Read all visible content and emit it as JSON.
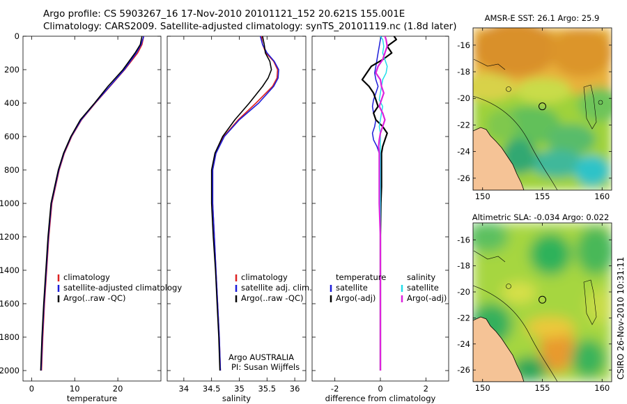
{
  "header": {
    "line1": "Argo profile: CS 5903267_16 17-Nov-2010 20101121_152 20.621S 155.001E",
    "line2": "Climatology: CARS2009. Satellite-adjusted climatology: synTS_20101119.nc (1.8d later)"
  },
  "credit": {
    "stamp": "CSIRO 26-Nov-2010 10:31:11",
    "agency": "Argo AUSTRALIA",
    "pi": "PI: Susan Wijffels"
  },
  "colors": {
    "climatology": "#dd2222",
    "satellite": "#1c1cd8",
    "argo": "#000000",
    "salinity_satellite": "#22dde8",
    "salinity_argo": "#dd22dd",
    "land": "#f5c396"
  },
  "chart_data": [
    {
      "id": "temperature",
      "type": "line",
      "xlabel": "temperature",
      "xlim": [
        -2,
        30
      ],
      "xticks": [
        0,
        10,
        20
      ],
      "ylim": [
        0,
        2000
      ],
      "yticks": [
        0,
        200,
        400,
        600,
        800,
        1000,
        1200,
        1400,
        1600,
        1800,
        2000
      ],
      "legend": [
        "climatology",
        "satellite-adjusted climatology",
        "Argo(..raw -QC)"
      ],
      "depth": [
        0,
        50,
        100,
        200,
        300,
        400,
        500,
        600,
        700,
        800,
        1000,
        1200,
        1400,
        1600,
        1800,
        2000
      ],
      "series": [
        {
          "name": "climatology",
          "values": [
            26.0,
            25.6,
            24.6,
            21.6,
            18.2,
            14.8,
            11.6,
            9.3,
            7.6,
            6.4,
            4.7,
            4.0,
            3.5,
            3.0,
            2.6,
            2.3
          ]
        },
        {
          "name": "satellite-adjusted climatology",
          "values": [
            26.0,
            25.4,
            24.3,
            21.5,
            18.1,
            14.7,
            11.5,
            9.2,
            7.5,
            6.3,
            4.6,
            3.9,
            3.4,
            2.9,
            2.5,
            2.2
          ]
        },
        {
          "name": "Argo(..raw -QC)",
          "values": [
            25.6,
            25.2,
            24.0,
            21.2,
            17.7,
            14.6,
            11.3,
            9.1,
            7.4,
            6.2,
            4.5,
            3.8,
            3.3,
            2.8,
            2.4,
            2.1
          ]
        }
      ]
    },
    {
      "id": "salinity",
      "type": "line",
      "xlabel": "salinity",
      "xlim": [
        33.7,
        36.2
      ],
      "xticks": [
        34,
        34.5,
        35,
        35.5,
        36
      ],
      "ylim": [
        0,
        2000
      ],
      "legend": [
        "climatology",
        "satellite adj. clim.",
        "Argo(..raw -QC)"
      ],
      "depth": [
        0,
        50,
        100,
        150,
        200,
        250,
        300,
        400,
        500,
        600,
        700,
        800,
        1000,
        1200,
        1400,
        1600,
        1800,
        2000
      ],
      "series": [
        {
          "name": "climatology",
          "values": [
            35.4,
            35.42,
            35.48,
            35.62,
            35.69,
            35.68,
            35.6,
            35.3,
            34.98,
            34.72,
            34.58,
            34.52,
            34.52,
            34.55,
            34.58,
            34.61,
            34.64,
            34.66
          ]
        },
        {
          "name": "satellite adj. clim.",
          "values": [
            35.38,
            35.42,
            35.5,
            35.63,
            35.71,
            35.7,
            35.62,
            35.35,
            35.0,
            34.73,
            34.58,
            34.52,
            34.52,
            34.55,
            34.58,
            34.61,
            34.64,
            34.66
          ]
        },
        {
          "name": "Argo(..raw -QC)",
          "values": [
            35.42,
            35.45,
            35.47,
            35.55,
            35.58,
            35.52,
            35.42,
            35.18,
            34.92,
            34.7,
            34.56,
            34.5,
            34.5,
            34.53,
            34.57,
            34.6,
            34.63,
            34.65
          ]
        }
      ]
    },
    {
      "id": "difference",
      "type": "line",
      "xlabel": "difference from climatology",
      "xlim": [
        -3.0,
        3.0
      ],
      "xticks": [
        -2,
        0,
        2
      ],
      "ylim": [
        0,
        2000
      ],
      "legend_titles": [
        "temperature",
        "salinity"
      ],
      "legend": [
        "satellite",
        "Argo(-adj)",
        "satellite",
        "Argo(-adj)"
      ],
      "depth": [
        0,
        20,
        60,
        100,
        140,
        180,
        220,
        260,
        300,
        340,
        380,
        420,
        460,
        500,
        540,
        580,
        620,
        660,
        700,
        800,
        900,
        1000,
        1200,
        1600,
        2000
      ],
      "series": [
        {
          "name": "temperature satellite",
          "values": [
            0.05,
            0.0,
            -0.05,
            -0.1,
            -0.15,
            -0.2,
            -0.25,
            -0.2,
            -0.1,
            -0.2,
            -0.3,
            -0.35,
            -0.3,
            -0.2,
            -0.25,
            -0.35,
            -0.3,
            -0.15,
            -0.05,
            -0.02,
            0.0,
            0.0,
            0.0,
            0.0,
            0.0
          ]
        },
        {
          "name": "temperature Argo(-adj)",
          "values": [
            0.6,
            0.7,
            0.3,
            0.5,
            0.1,
            -0.4,
            -0.6,
            -0.8,
            -0.5,
            -0.3,
            -0.2,
            -0.1,
            -0.3,
            -0.2,
            0.1,
            0.3,
            0.2,
            0.1,
            0.05,
            0.05,
            0.05,
            0.02,
            0.0,
            0.0,
            0.0
          ]
        },
        {
          "name": "salinity satellite",
          "values": [
            0.0,
            0.1,
            0.15,
            0.1,
            0.2,
            0.3,
            0.25,
            0.1,
            0.05,
            0.0,
            -0.05,
            0.1,
            0.05,
            0.0,
            -0.05,
            0.0,
            0.0,
            0.0,
            0.0,
            0.0,
            0.0,
            0.0,
            0.0,
            0.0,
            0.0
          ]
        },
        {
          "name": "salinity Argo(-adj)",
          "values": [
            0.2,
            0.25,
            0.3,
            0.2,
            0.1,
            -0.1,
            -0.2,
            0.0,
            0.05,
            0.15,
            0.05,
            -0.05,
            0.1,
            0.2,
            0.1,
            0.0,
            -0.05,
            -0.08,
            -0.05,
            -0.05,
            -0.05,
            -0.05,
            0.0,
            0.0,
            0.0
          ]
        }
      ]
    },
    {
      "id": "sst-map",
      "type": "heatmap",
      "title": "AMSR-E SST: 26.1 Argo: 25.9",
      "xticks": [
        150,
        155,
        160
      ],
      "yticks": [
        -16,
        -18,
        -20,
        -22,
        -24,
        -26
      ],
      "xlim": [
        149.2,
        160.8
      ],
      "ylim": [
        -26.9,
        -14.7
      ],
      "argo_position": {
        "lon": 155.0,
        "lat": -20.6
      }
    },
    {
      "id": "sla-map",
      "type": "heatmap",
      "title": "Altimetric SLA: -0.034 Argo: 0.022",
      "xticks": [
        150,
        155,
        160
      ],
      "yticks": [
        -16,
        -18,
        -20,
        -22,
        -24,
        -26
      ],
      "xlim": [
        149.2,
        160.8
      ],
      "ylim": [
        -26.9,
        -14.7
      ],
      "argo_position": {
        "lon": 155.0,
        "lat": -20.6
      }
    }
  ]
}
